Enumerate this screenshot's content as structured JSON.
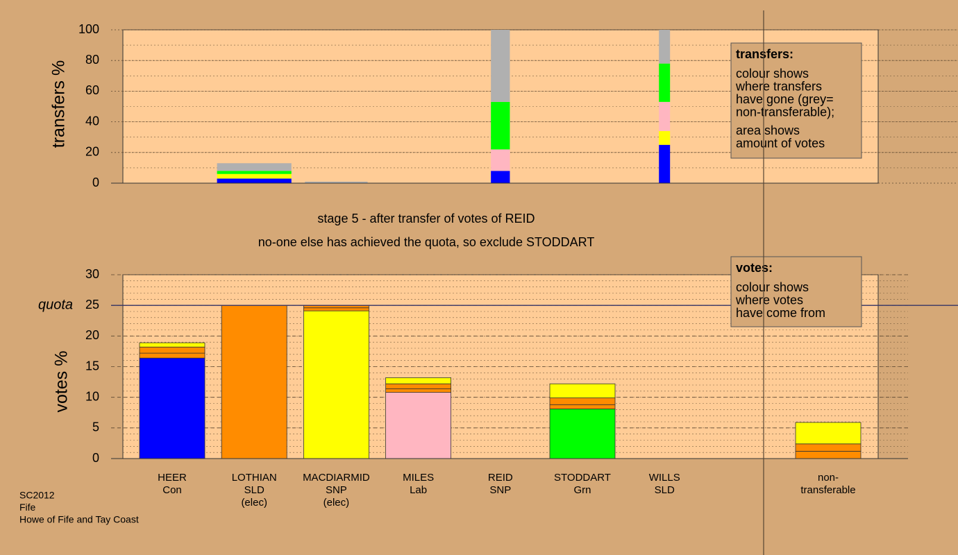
{
  "chart_data": [
    {
      "type": "bar",
      "stacked": true,
      "ylabel": "transfers %",
      "ylim": [
        0,
        100
      ],
      "yticks": [
        0,
        20,
        40,
        60,
        80,
        100
      ],
      "amounts": [
        0,
        1.14,
        0.96,
        0,
        0.29,
        0,
        0.17,
        0
      ],
      "series": [
        {
          "color": "#0000ff",
          "values": [
            0,
            3,
            0,
            0,
            8,
            0,
            25,
            0
          ]
        },
        {
          "color": "#ffff00",
          "values": [
            0,
            3,
            0,
            0,
            0,
            0,
            9,
            0
          ]
        },
        {
          "color": "#ffb6c1",
          "values": [
            0,
            0,
            0,
            0,
            14,
            0,
            19,
            0
          ]
        },
        {
          "color": "#00ff00",
          "values": [
            0,
            2,
            0,
            0,
            31,
            0,
            25,
            0
          ]
        },
        {
          "color": "#b0b0b0",
          "values": [
            0,
            5,
            1,
            0,
            47,
            0,
            22,
            0
          ]
        }
      ]
    },
    {
      "type": "bar",
      "stacked": true,
      "ylabel": "votes %",
      "ylim": [
        0,
        30
      ],
      "yticks": [
        0,
        5,
        10,
        15,
        20,
        25,
        30
      ],
      "quota": {
        "value": 25,
        "label": "quota"
      },
      "categories": [
        [
          "HEER",
          "Con"
        ],
        [
          "LOTHIAN",
          "SLD",
          "(elec)"
        ],
        [
          "MACDIARMID",
          "SNP",
          "(elec)"
        ],
        [
          "MILES",
          "Lab"
        ],
        [
          "REID",
          "SNP"
        ],
        [
          "STODDART",
          "Grn"
        ],
        [
          "WILLS",
          "SLD"
        ],
        [
          "non-",
          "transferable"
        ]
      ],
      "series": [
        {
          "colors": [
            "#0000ff",
            "#ff8c00",
            "#ffff00",
            "#ffb6c1",
            "#ffff00",
            "#00ff00",
            "#ff8c00",
            "#b0b0b0"
          ],
          "values": [
            16.4,
            25,
            24.1,
            10.8,
            0,
            8.1,
            0,
            0
          ]
        },
        {
          "color": "#ff8c00",
          "values": [
            0.8,
            0,
            0.5,
            0.6,
            0,
            0.7,
            0,
            1.2
          ]
        },
        {
          "color": "#ff8c00",
          "values": [
            1.0,
            0,
            0.4,
            0.8,
            0,
            1.1,
            0,
            1.2
          ]
        },
        {
          "color": "#ffff00",
          "values": [
            0.7,
            0,
            0,
            1.0,
            0,
            2.3,
            0,
            3.5
          ]
        }
      ]
    }
  ],
  "stage": "stage 5 - after transfer of votes of REID",
  "note": "no-one else has achieved the quota, so exclude STODDART",
  "legends": [
    {
      "title": "transfers:",
      "paragraphs": [
        [
          "colour shows",
          "where transfers",
          "have gone (grey=",
          "non-transferable);"
        ],
        [
          "area shows",
          "amount of votes"
        ]
      ]
    },
    {
      "title": "votes:",
      "paragraphs": [
        [
          "colour shows",
          "where votes",
          "have come from"
        ]
      ]
    }
  ],
  "footer": [
    "SC2012",
    "Fife",
    "Howe of Fife and Tay Coast"
  ]
}
